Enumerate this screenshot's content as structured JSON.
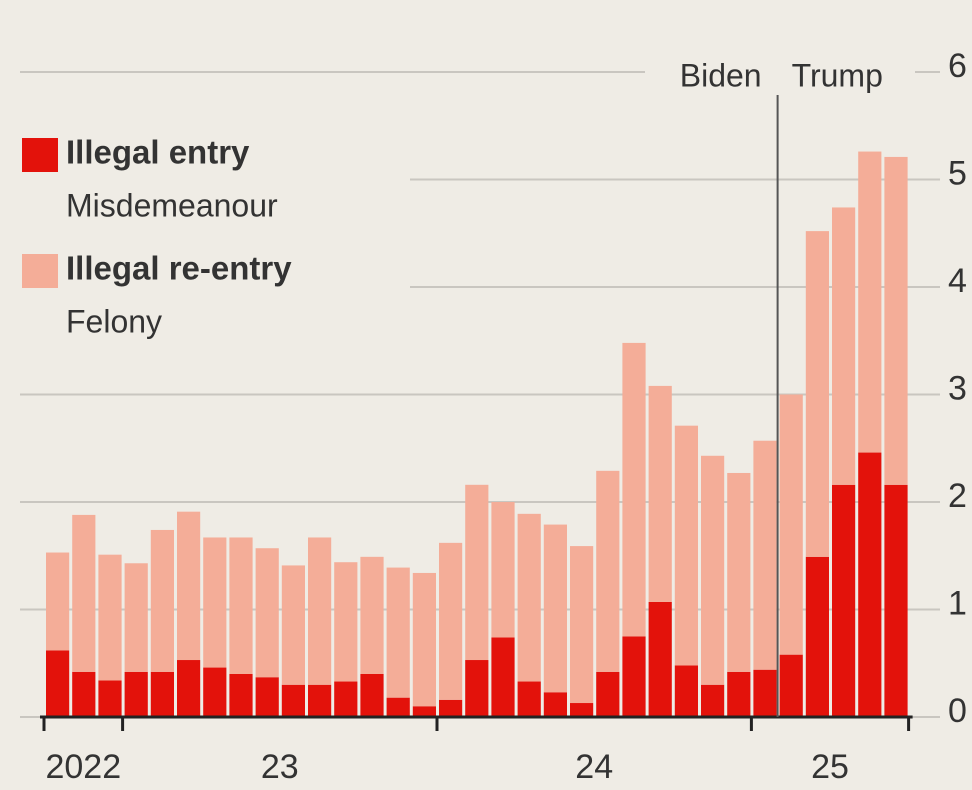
{
  "chart_data": {
    "type": "stacked_bar",
    "categories": [
      null,
      null,
      null,
      null,
      null,
      null,
      null,
      null,
      null,
      null,
      null,
      null,
      null,
      null,
      null,
      null,
      null,
      null,
      null,
      null,
      null,
      null,
      null,
      null,
      null,
      null,
      null,
      null,
      null,
      null,
      null,
      null,
      null
    ],
    "series": [
      {
        "name": "Illegal entry",
        "description": "Misdemeanour",
        "color": "#e3120b",
        "values": [
          0.62,
          0.42,
          0.34,
          0.42,
          0.42,
          0.53,
          0.46,
          0.4,
          0.37,
          0.3,
          0.3,
          0.33,
          0.4,
          0.18,
          0.1,
          0.16,
          0.53,
          0.74,
          0.33,
          0.23,
          0.13,
          0.42,
          0.75,
          1.07,
          0.48,
          0.3,
          0.42,
          0.44,
          0.58,
          1.49,
          2.16,
          2.46,
          2.16
        ]
      },
      {
        "name": "Illegal re-entry",
        "description": "Felony",
        "color": "#f4ad98",
        "values": [
          0.91,
          1.46,
          1.17,
          1.01,
          1.32,
          1.38,
          1.21,
          1.27,
          1.2,
          1.11,
          1.37,
          1.11,
          1.09,
          1.21,
          1.24,
          1.46,
          1.63,
          1.26,
          1.56,
          1.56,
          1.46,
          1.87,
          2.73,
          2.01,
          2.23,
          2.13,
          1.85,
          2.13,
          2.42,
          3.03,
          2.58,
          2.8,
          3.05
        ]
      }
    ],
    "ylim": [
      0,
      6
    ],
    "yticks": [
      0,
      1,
      2,
      3,
      4,
      5,
      6
    ],
    "grid": true,
    "xticks": [
      {
        "value": 0,
        "label": "2022"
      },
      {
        "value": 3,
        "label": "23"
      },
      {
        "value": 15,
        "label": "24"
      },
      {
        "value": 27,
        "label": "25"
      }
    ],
    "divider": {
      "at": 28,
      "left_label": "Biden",
      "right_label": "Trump"
    },
    "legend": "top-left"
  }
}
